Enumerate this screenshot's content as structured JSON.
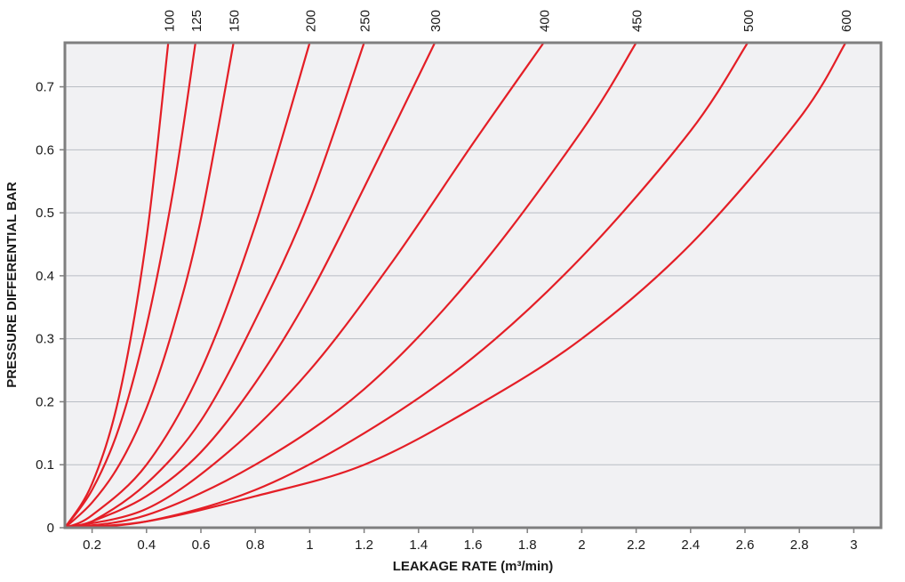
{
  "chart_data": {
    "type": "line",
    "title": "",
    "xlabel": "LEAKAGE RATE (m³/min)",
    "ylabel": "PRESSURE DIFFERENTIAL BAR",
    "xlim": [
      0.1,
      3.1
    ],
    "ylim": [
      0,
      0.77
    ],
    "grid": true,
    "grid_axis": "y",
    "x_ticks": [
      "0.2",
      "0.4",
      "0.6",
      "0.8",
      "1",
      "1.2",
      "1.4",
      "1.6",
      "1.8",
      "2",
      "2.2",
      "2.4",
      "2.6",
      "2.8",
      "3"
    ],
    "x_tick_values": [
      0.2,
      0.4,
      0.6,
      0.8,
      1.0,
      1.2,
      1.4,
      1.6,
      1.8,
      2.0,
      2.2,
      2.4,
      2.6,
      2.8,
      3.0
    ],
    "y_ticks": [
      "0",
      "0.1",
      "0.2",
      "0.3",
      "0.4",
      "0.5",
      "0.6",
      "0.7"
    ],
    "y_tick_values": [
      0,
      0.1,
      0.2,
      0.3,
      0.4,
      0.5,
      0.6,
      0.7
    ],
    "line_color": "#e41e26",
    "plot_background": "#f1f1f3",
    "frame_color": "#7f7f7f",
    "series": [
      {
        "name": "100",
        "x": [
          0.1,
          0.2,
          0.3,
          0.4,
          0.48
        ],
        "y": [
          0,
          0.07,
          0.21,
          0.46,
          0.77
        ]
      },
      {
        "name": "125",
        "x": [
          0.1,
          0.2,
          0.3,
          0.4,
          0.5,
          0.58
        ],
        "y": [
          0,
          0.06,
          0.16,
          0.32,
          0.54,
          0.77
        ]
      },
      {
        "name": "150",
        "x": [
          0.1,
          0.2,
          0.3,
          0.4,
          0.5,
          0.6,
          0.72
        ],
        "y": [
          0,
          0.04,
          0.1,
          0.19,
          0.32,
          0.49,
          0.77
        ]
      },
      {
        "name": "200",
        "x": [
          0.1,
          0.2,
          0.4,
          0.6,
          0.8,
          1.0
        ],
        "y": [
          0,
          0.02,
          0.1,
          0.25,
          0.48,
          0.77
        ]
      },
      {
        "name": "250",
        "x": [
          0.1,
          0.2,
          0.4,
          0.6,
          0.8,
          1.0,
          1.2
        ],
        "y": [
          0,
          0.01,
          0.07,
          0.17,
          0.33,
          0.52,
          0.77
        ]
      },
      {
        "name": "300",
        "x": [
          0.1,
          0.2,
          0.4,
          0.6,
          0.8,
          1.0,
          1.2,
          1.46
        ],
        "y": [
          0,
          0.01,
          0.05,
          0.12,
          0.23,
          0.37,
          0.54,
          0.77
        ]
      },
      {
        "name": "400",
        "x": [
          0.1,
          0.4,
          0.7,
          1.0,
          1.3,
          1.6,
          1.86
        ],
        "y": [
          0,
          0.03,
          0.12,
          0.25,
          0.42,
          0.61,
          0.77
        ]
      },
      {
        "name": "450",
        "x": [
          0.1,
          0.4,
          0.8,
          1.2,
          1.6,
          2.0,
          2.2
        ],
        "y": [
          0,
          0.02,
          0.1,
          0.22,
          0.4,
          0.63,
          0.77
        ]
      },
      {
        "name": "500",
        "x": [
          0.1,
          0.4,
          0.8,
          1.2,
          1.6,
          2.0,
          2.4,
          2.61
        ],
        "y": [
          0,
          0.01,
          0.06,
          0.15,
          0.27,
          0.43,
          0.63,
          0.77
        ]
      },
      {
        "name": "600",
        "x": [
          0.1,
          0.4,
          0.8,
          1.2,
          1.6,
          2.0,
          2.4,
          2.8,
          2.97
        ],
        "y": [
          0,
          0.01,
          0.05,
          0.1,
          0.19,
          0.3,
          0.45,
          0.65,
          0.77
        ]
      }
    ]
  }
}
